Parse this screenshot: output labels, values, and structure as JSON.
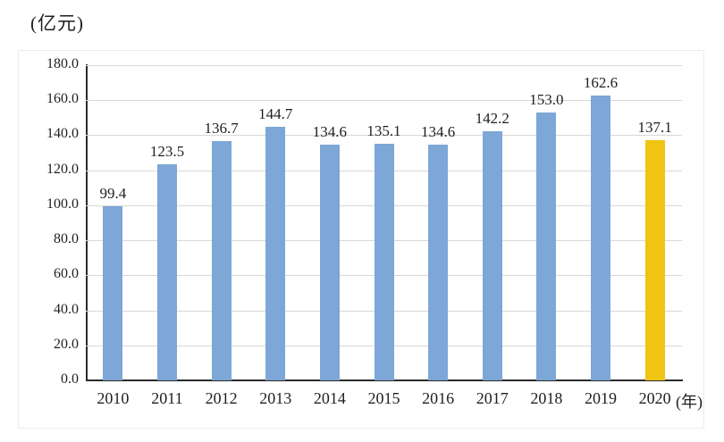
{
  "chart_data": {
    "type": "bar",
    "title": "",
    "y_unit_label": "(亿元)",
    "x_unit_label": "(年)",
    "categories": [
      "2010",
      "2011",
      "2012",
      "2013",
      "2014",
      "2015",
      "2016",
      "2017",
      "2018",
      "2019",
      "2020"
    ],
    "values": [
      99.4,
      123.5,
      136.7,
      144.7,
      134.6,
      135.1,
      134.6,
      142.2,
      153.0,
      162.6,
      137.1
    ],
    "value_label_decimals": 1,
    "ylim": [
      0,
      180
    ],
    "y_tick_step": 20,
    "grid": true,
    "legend": "none",
    "highlight_index": 10,
    "colors": {
      "bar_default": "#7CA7D6",
      "bar_highlight": "#F0C410",
      "axis": "#2b2b2b",
      "gridline": "#d8d8d8",
      "text": "#1f1f1f",
      "frame_border": "#ebebeb",
      "background": "#ffffff"
    }
  }
}
